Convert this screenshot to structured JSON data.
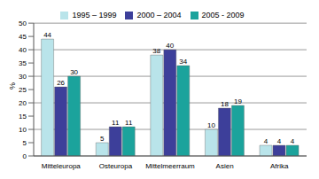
{
  "chart_data": {
    "type": "bar",
    "y_label": "%",
    "categories": [
      "Mitteleuropa",
      "Osteuropa",
      "Mittelmeerraum",
      "Asien",
      "Afrika"
    ],
    "series": [
      {
        "name": "1995 – 1999",
        "color": "#b9e4ea",
        "values": [
          44,
          5,
          38,
          10,
          4
        ]
      },
      {
        "name": "2000 – 2004",
        "color": "#3d3f9a",
        "values": [
          26,
          11,
          40,
          18,
          4
        ]
      },
      {
        "name": "2005 - 2009",
        "color": "#1ba39c",
        "values": [
          30,
          11,
          34,
          19,
          4
        ]
      }
    ],
    "ylim": [
      0,
      50
    ],
    "yticks": [
      0,
      5,
      10,
      15,
      20,
      25,
      30,
      35,
      40,
      45,
      50
    ],
    "grid": true,
    "legend": "top",
    "data_labels": true
  }
}
